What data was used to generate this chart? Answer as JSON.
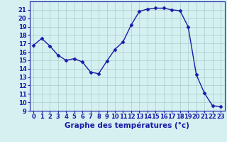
{
  "x": [
    0,
    1,
    2,
    3,
    4,
    5,
    6,
    7,
    8,
    9,
    10,
    11,
    12,
    13,
    14,
    15,
    16,
    17,
    18,
    19,
    20,
    21,
    22,
    23
  ],
  "y": [
    16.8,
    17.6,
    16.7,
    15.6,
    15.0,
    15.2,
    14.8,
    13.6,
    13.4,
    14.9,
    16.3,
    17.2,
    19.2,
    20.8,
    21.1,
    21.2,
    21.2,
    21.0,
    20.9,
    19.0,
    13.3,
    11.1,
    9.6,
    9.5
  ],
  "line_color": "#1a1aaa",
  "marker": "D",
  "marker_size": 2.5,
  "bg_color": "#d4f0f0",
  "grid_color": "#aacccc",
  "xlabel": "Graphe des températures (°c)",
  "xlabel_color": "#1a1aaa",
  "ylim": [
    9,
    22
  ],
  "xlim": [
    -0.5,
    23.5
  ],
  "yticks": [
    9,
    10,
    11,
    12,
    13,
    14,
    15,
    16,
    17,
    18,
    19,
    20,
    21
  ],
  "xticks": [
    0,
    1,
    2,
    3,
    4,
    5,
    6,
    7,
    8,
    9,
    10,
    11,
    12,
    13,
    14,
    15,
    16,
    17,
    18,
    19,
    20,
    21,
    22,
    23
  ],
  "tick_fontsize": 6,
  "xlabel_fontsize": 7.5
}
